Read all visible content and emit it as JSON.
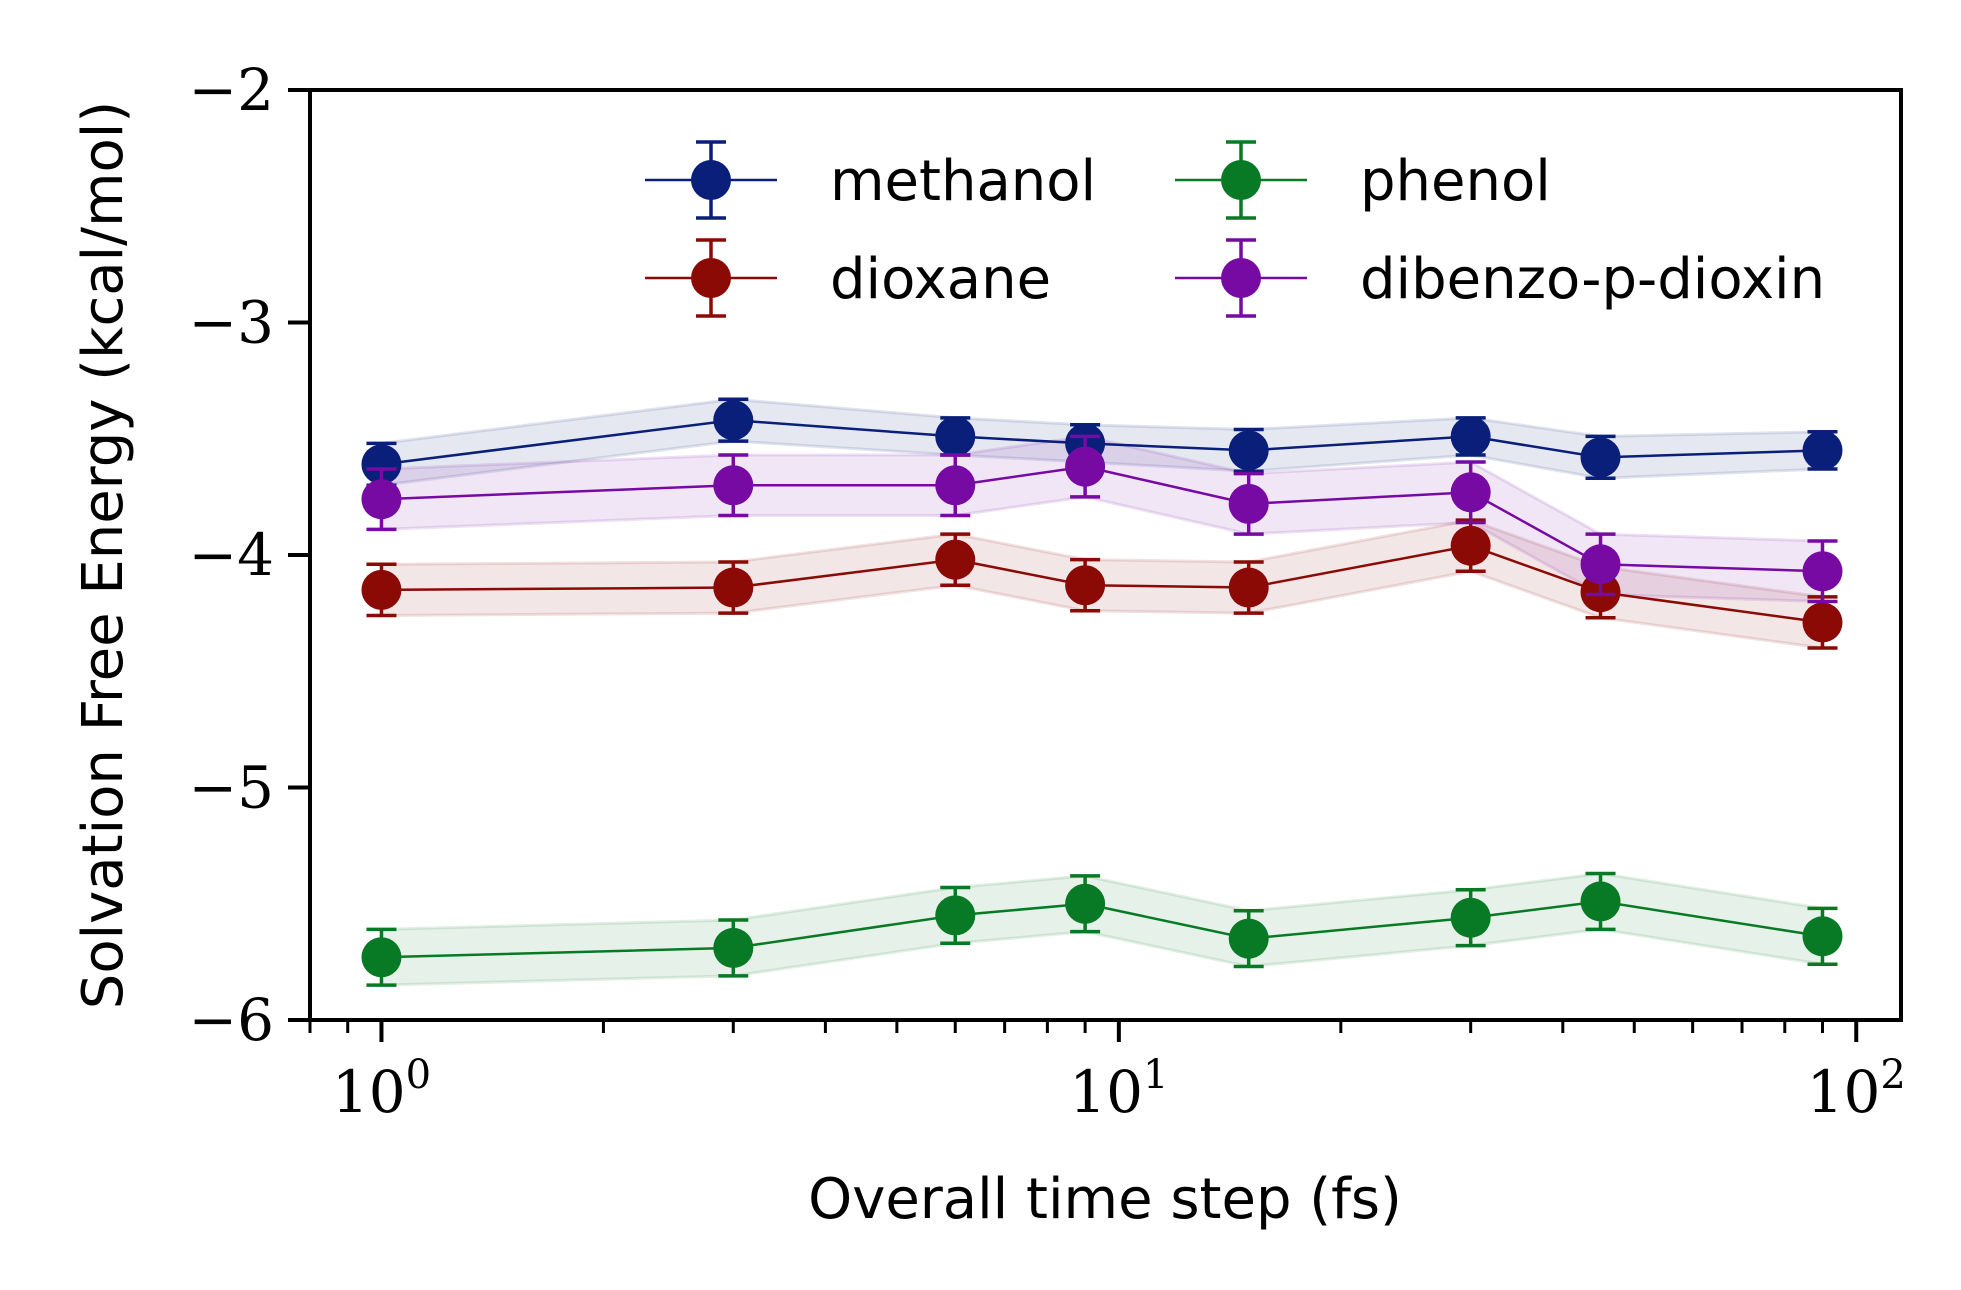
{
  "chart_data": {
    "type": "line",
    "xlabel": "Overall time step (fs)",
    "ylabel": "Solvation Free Energy (kcal/mol)",
    "xscale": "log",
    "xlim": [
      0.8,
      115
    ],
    "ylim": [
      -6,
      -2
    ],
    "xticks": [
      1,
      10,
      100
    ],
    "xtick_labels": [
      {
        "base": "10",
        "exp": "0"
      },
      {
        "base": "10",
        "exp": "1"
      },
      {
        "base": "10",
        "exp": "2"
      }
    ],
    "yticks": [
      -6,
      -5,
      -4,
      -3,
      -2
    ],
    "ytick_labels": [
      "−6",
      "−5",
      "−4",
      "−3",
      "−2"
    ],
    "grid": false,
    "legend": {
      "placement": "top-center",
      "columns": 2
    },
    "x": [
      1,
      3,
      6,
      9,
      15,
      30,
      45,
      90
    ],
    "series": [
      {
        "name": "methanol",
        "color": "#0a1f7a",
        "values": [
          -3.61,
          -3.42,
          -3.49,
          -3.52,
          -3.55,
          -3.49,
          -3.58,
          -3.55
        ],
        "errors": [
          0.09,
          0.09,
          0.08,
          0.08,
          0.09,
          0.08,
          0.09,
          0.08
        ]
      },
      {
        "name": "dioxane",
        "color": "#8b0a05",
        "values": [
          -4.15,
          -4.14,
          -4.02,
          -4.13,
          -4.14,
          -3.96,
          -4.16,
          -4.29
        ],
        "errors": [
          0.11,
          0.11,
          0.11,
          0.11,
          0.11,
          0.11,
          0.11,
          0.11
        ]
      },
      {
        "name": "phenol",
        "color": "#087a25",
        "values": [
          -5.73,
          -5.69,
          -5.55,
          -5.5,
          -5.65,
          -5.56,
          -5.49,
          -5.64
        ],
        "errors": [
          0.12,
          0.12,
          0.12,
          0.12,
          0.12,
          0.12,
          0.12,
          0.12
        ]
      },
      {
        "name": "dibenzo-p-dioxin",
        "color": "#760aa3",
        "values": [
          -3.76,
          -3.7,
          -3.7,
          -3.62,
          -3.78,
          -3.73,
          -4.04,
          -4.07
        ],
        "errors": [
          0.13,
          0.13,
          0.13,
          0.13,
          0.13,
          0.13,
          0.13,
          0.13
        ]
      }
    ]
  }
}
